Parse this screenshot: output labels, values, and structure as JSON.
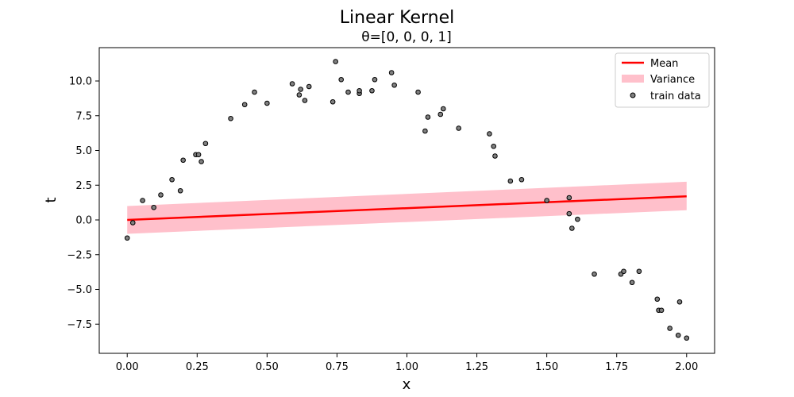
{
  "chart_data": {
    "type": "line",
    "title": "Linear Kernel",
    "subtitle": "θ=[0, 0, 0, 1]",
    "xlabel": "x",
    "ylabel": "t",
    "xlim": [
      -0.1,
      2.1
    ],
    "ylim": [
      -9.6,
      12.4
    ],
    "xticks": [
      0.0,
      0.25,
      0.5,
      0.75,
      1.0,
      1.25,
      1.5,
      1.75,
      2.0
    ],
    "xtick_labels": [
      "0.00",
      "0.25",
      "0.50",
      "0.75",
      "1.00",
      "1.25",
      "1.50",
      "1.75",
      "2.00"
    ],
    "yticks": [
      -7.5,
      -5.0,
      -2.5,
      0.0,
      2.5,
      5.0,
      7.5,
      10.0
    ],
    "ytick_labels": [
      "−7.5",
      "−5.0",
      "−2.5",
      "0.0",
      "2.5",
      "5.0",
      "7.5",
      "10.0"
    ],
    "grid": false,
    "legend_position": "top-right",
    "series": [
      {
        "name": "Mean",
        "kind": "line",
        "color": "#ff0000",
        "x": [
          0.0,
          2.0
        ],
        "y": [
          0.0,
          1.7
        ]
      },
      {
        "name": "Variance",
        "kind": "band",
        "color": "#ffc0cb",
        "x": [
          0.0,
          2.0
        ],
        "lower": [
          -1.0,
          0.7
        ],
        "upper": [
          1.0,
          2.75
        ]
      },
      {
        "name": "train data",
        "kind": "scatter",
        "color": "#808080",
        "edge_color": "#000000",
        "x": [
          0.0,
          0.02,
          0.055,
          0.095,
          0.12,
          0.16,
          0.19,
          0.2,
          0.245,
          0.255,
          0.265,
          0.28,
          0.37,
          0.42,
          0.455,
          0.5,
          0.59,
          0.615,
          0.62,
          0.635,
          0.65,
          0.735,
          0.745,
          0.765,
          0.79,
          0.83,
          0.83,
          0.875,
          0.885,
          0.945,
          0.955,
          1.04,
          1.065,
          1.075,
          1.12,
          1.13,
          1.185,
          1.295,
          1.31,
          1.315,
          1.37,
          1.41,
          1.5,
          1.58,
          1.58,
          1.59,
          1.61,
          1.67,
          1.765,
          1.775,
          1.805,
          1.83,
          1.895,
          1.9,
          1.91,
          1.94,
          1.97,
          1.975,
          2.0
        ],
        "y": [
          -1.3,
          -0.2,
          1.4,
          0.9,
          1.8,
          2.9,
          2.1,
          4.3,
          4.7,
          4.7,
          4.2,
          5.5,
          7.3,
          8.3,
          9.2,
          8.4,
          9.8,
          9.0,
          9.4,
          8.6,
          9.6,
          8.5,
          11.4,
          10.1,
          9.2,
          9.1,
          9.3,
          9.3,
          10.1,
          10.6,
          9.7,
          9.2,
          6.4,
          7.4,
          7.6,
          8.0,
          6.6,
          6.2,
          5.3,
          4.6,
          2.8,
          2.9,
          1.4,
          1.6,
          0.45,
          -0.6,
          0.05,
          -3.9,
          -3.9,
          -3.7,
          -4.5,
          -3.7,
          -5.7,
          -6.5,
          -6.5,
          -7.8,
          -8.3,
          -5.9,
          -8.5
        ]
      }
    ]
  }
}
